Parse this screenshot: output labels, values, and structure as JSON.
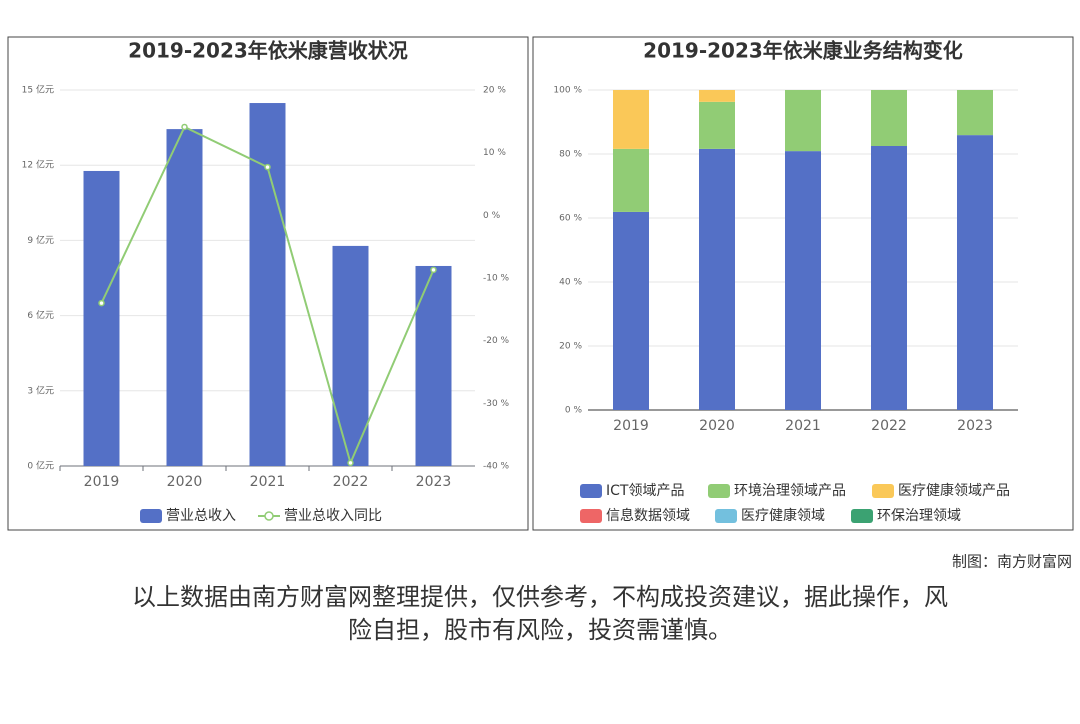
{
  "chart_data": [
    {
      "type": "bar",
      "title": "2019-2023年依米康营收状况",
      "categories": [
        "2019",
        "2020",
        "2021",
        "2022",
        "2023"
      ],
      "series": [
        {
          "name": "营业总收入",
          "color": "#5470c6",
          "values": [
            11.77,
            13.44,
            14.48,
            8.78,
            7.98
          ]
        },
        {
          "name": "营业总收入同比",
          "color": "#91cc75",
          "type": "line",
          "axis": "y2",
          "values": [
            -14.0,
            14.1,
            7.7,
            -39.5,
            -8.7
          ]
        }
      ],
      "ylim": [
        0,
        15
      ],
      "yticks": [
        {
          "value": 0,
          "label": "0 亿元"
        },
        {
          "value": 3,
          "label": "3 亿元"
        },
        {
          "value": 6,
          "label": "6 亿元"
        },
        {
          "value": 9,
          "label": "9 亿元"
        },
        {
          "value": 12,
          "label": "12 亿元"
        },
        {
          "value": 15,
          "label": "15 亿元"
        }
      ],
      "y2lim": [
        -40,
        20
      ],
      "y2ticks": [
        {
          "value": -40,
          "label": "-40 %"
        },
        {
          "value": -30,
          "label": "-30 %"
        },
        {
          "value": -20,
          "label": "-20 %"
        },
        {
          "value": -10,
          "label": "-10 %"
        },
        {
          "value": 0,
          "label": "0 %"
        },
        {
          "value": 10,
          "label": "10 %"
        },
        {
          "value": 20,
          "label": "20 %"
        }
      ],
      "grid": true
    },
    {
      "type": "stacked_bar",
      "title": "2019-2023年依米康业务结构变化",
      "categories": [
        "2019",
        "2020",
        "2021",
        "2022",
        "2023"
      ],
      "series": [
        {
          "name": "ICT领域产品",
          "color": "#5470c6",
          "values": [
            61.9,
            81.6,
            80.9,
            82.5,
            85.9
          ]
        },
        {
          "name": "环境治理领域产品",
          "color": "#91cc75",
          "values": [
            19.7,
            14.7,
            19.1,
            17.5,
            14.1
          ]
        },
        {
          "name": "医疗健康领域产品",
          "color": "#fac858",
          "values": [
            18.4,
            3.7,
            0,
            0,
            0
          ]
        },
        {
          "name": "信息数据领域",
          "color": "#ee6666",
          "values": [
            0,
            0,
            0,
            0,
            0
          ]
        },
        {
          "name": "医疗健康领域",
          "color": "#73c0de",
          "values": [
            0,
            0,
            0,
            0,
            0
          ]
        },
        {
          "name": "环保治理领域",
          "color": "#3ba272",
          "values": [
            0,
            0,
            0,
            0,
            0
          ]
        }
      ],
      "ylim": [
        0,
        100
      ],
      "yticks": [
        {
          "value": 0,
          "label": "0 %"
        },
        {
          "value": 20,
          "label": "20 %"
        },
        {
          "value": 40,
          "label": "40 %"
        },
        {
          "value": 60,
          "label": "60 %"
        },
        {
          "value": 80,
          "label": "80 %"
        },
        {
          "value": 100,
          "label": "100 %"
        }
      ],
      "grid": true
    }
  ],
  "source": "制图：南方财富网",
  "disclaimer": [
    "以上数据由南方财富网整理提供，仅供参考，不构成投资建议，据此操作，风",
    "险自担，股市有风险，投资需谨慎。"
  ]
}
